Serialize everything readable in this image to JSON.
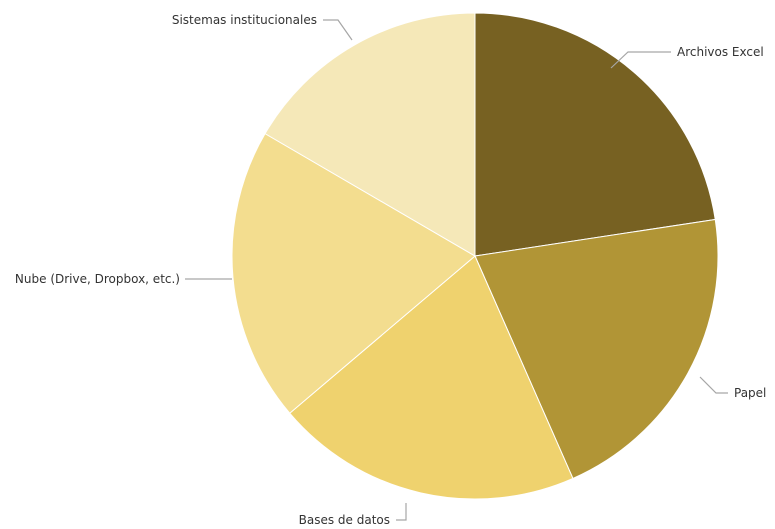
{
  "chart_data": {
    "type": "pie",
    "title": "",
    "categories": [
      "Archivos Excel",
      "Papel",
      "Bases de datos",
      "Nube (Drive, Dropbox, etc.)",
      "Sistemas institucionales"
    ],
    "values": [
      22.6,
      20.8,
      20.4,
      19.6,
      16.6
    ],
    "unit": "%",
    "colors": [
      "#776122",
      "#b19536",
      "#efd26e",
      "#f3dd8f",
      "#f5e8b8"
    ],
    "legend": "none",
    "labels": "outside-with-leader-lines",
    "start_angle_deg": 0,
    "direction": "clockwise"
  }
}
